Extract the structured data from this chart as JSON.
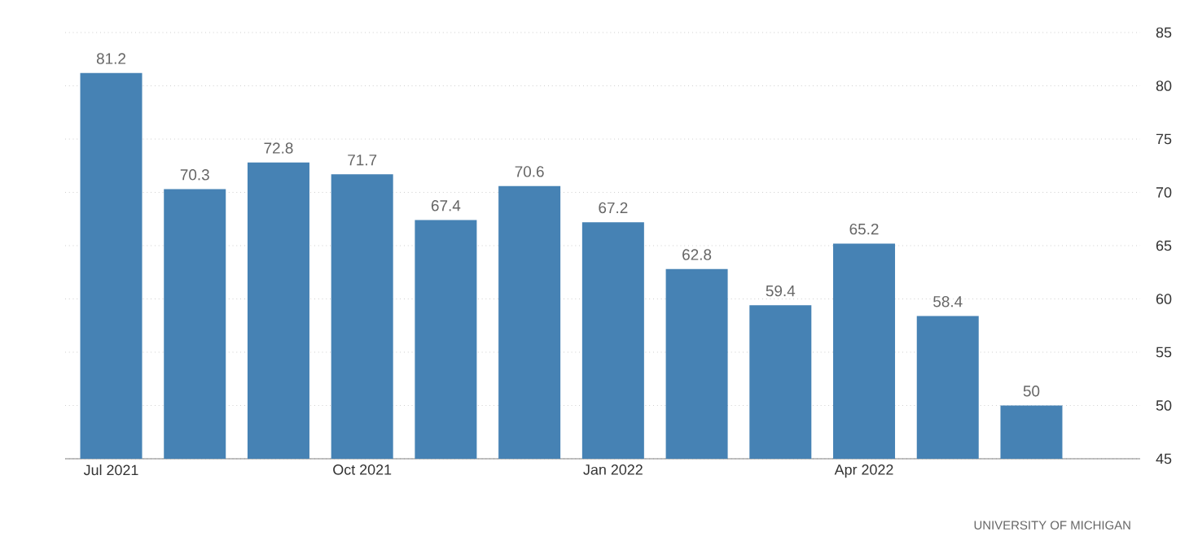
{
  "chart_data": {
    "type": "bar",
    "categories": [
      "Jul 2021",
      null,
      null,
      "Oct 2021",
      null,
      null,
      "Jan 2022",
      null,
      null,
      "Apr 2022",
      null,
      null
    ],
    "values": [
      81.2,
      70.3,
      72.8,
      71.7,
      67.4,
      70.6,
      67.2,
      62.8,
      59.4,
      65.2,
      58.4,
      50
    ],
    "color": "#4682b4",
    "ylim": [
      45,
      85
    ],
    "yticks": [
      45,
      50,
      55,
      60,
      65,
      70,
      75,
      80,
      85
    ],
    "grid": "y",
    "data_labels": true,
    "annotations": [
      "UNIVERSITY OF MICHIGAN"
    ]
  }
}
